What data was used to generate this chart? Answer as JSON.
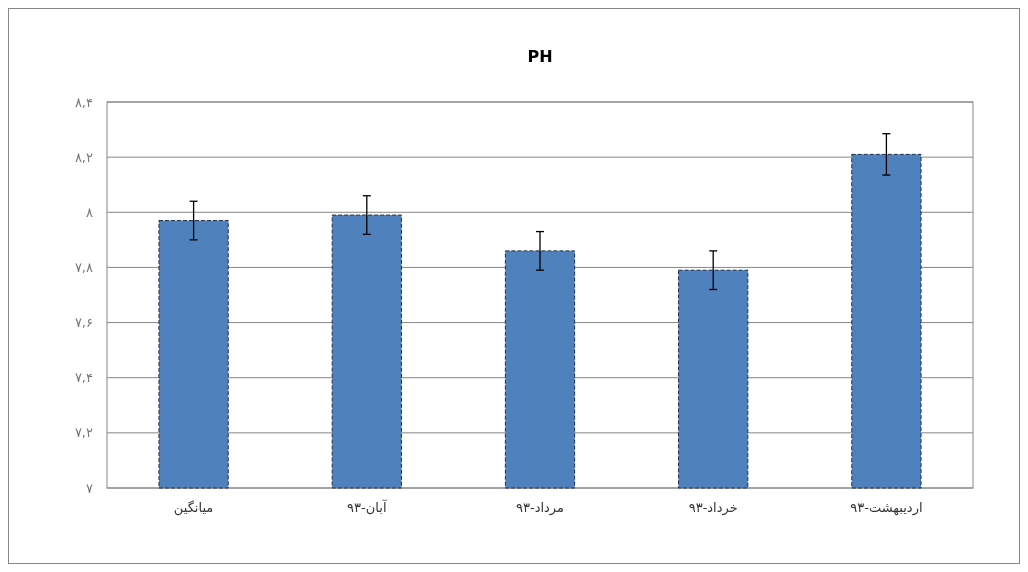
{
  "chart_data": {
    "type": "bar",
    "title": "PH",
    "categories": [
      "میانگین",
      "آبان-۹۳",
      "مرداد-۹۳",
      "خرداد-۹۳",
      "اردیبهشت-۹۳"
    ],
    "values": [
      7.97,
      7.99,
      7.86,
      7.79,
      8.21
    ],
    "errors": [
      0.07,
      0.07,
      0.07,
      0.07,
      0.075
    ],
    "color": "#4f81bd",
    "ylim": [
      7,
      8.4
    ],
    "yticks": [
      {
        "value": 7,
        "label": "۷"
      },
      {
        "value": 7.2,
        "label": "۷,۲"
      },
      {
        "value": 7.4,
        "label": "۷,۴"
      },
      {
        "value": 7.6,
        "label": "۷,۶"
      },
      {
        "value": 7.8,
        "label": "۷,۸"
      },
      {
        "value": 8,
        "label": "۸"
      },
      {
        "value": 8.2,
        "label": "۸,۲"
      },
      {
        "value": 8.4,
        "label": "۸,۴"
      }
    ],
    "grid": "y"
  }
}
